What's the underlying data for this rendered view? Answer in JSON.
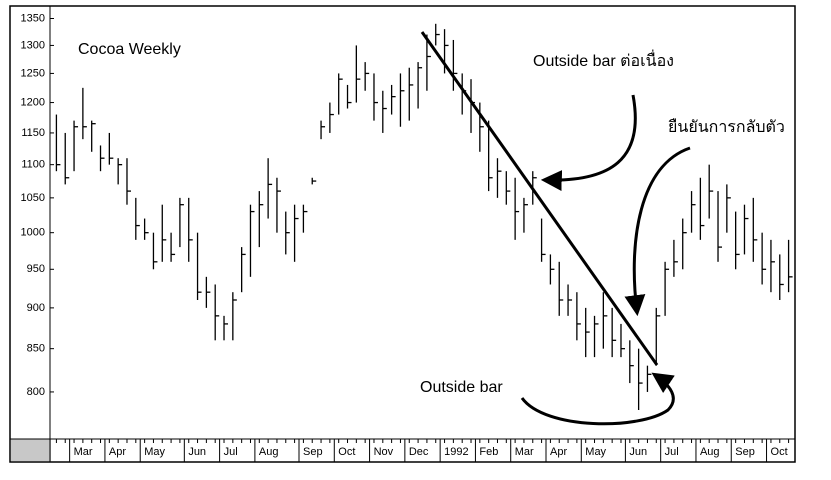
{
  "chart_data": {
    "type": "ohlc",
    "title": "Cocoa Weekly",
    "annotations": [
      "Outside bar ต่อเนื่อง",
      "ยืนยันการกลับตัว",
      "Outside bar"
    ],
    "categories": [
      null,
      "Mar",
      "Apr",
      "May",
      "Jun",
      "Jul",
      "Aug",
      "Sep",
      "Oct",
      "Nov",
      "Dec",
      "1992",
      "Feb",
      "Mar",
      "Apr",
      "May",
      "Jun",
      "Jul",
      "Aug",
      "Sep",
      "Oct"
    ],
    "high": [
      [
        1180,
        1150
      ],
      [
        1170,
        1225,
        1170,
        1130
      ],
      [
        1150,
        1110,
        1110,
        1050
      ],
      [
        1020,
        1000,
        1040,
        1000,
        1050
      ],
      [
        1050,
        1000,
        940,
        930
      ],
      [
        890,
        920,
        980,
        1040
      ],
      [
        1060,
        1110,
        1080,
        1030,
        1040
      ],
      [
        1040,
        1080,
        1170,
        1200
      ],
      [
        1250,
        1230,
        1300,
        1270
      ],
      [
        1250,
        1220,
        1230,
        1250
      ],
      [
        1260,
        1270,
        1320,
        1340
      ],
      [
        1330,
        1310,
        1250,
        1240
      ],
      [
        1200,
        1170,
        1110,
        1090
      ],
      [
        1080,
        1050,
        1090,
        1020
      ],
      [
        970,
        960,
        930,
        920
      ],
      [
        900,
        890,
        920,
        900,
        880
      ],
      [
        860,
        850,
        830,
        900
      ],
      [
        960,
        990,
        1020,
        1060
      ],
      [
        1080,
        1100,
        1060,
        1070
      ],
      [
        1030,
        1040,
        1050,
        1000
      ],
      [
        990,
        970,
        990
      ]
    ],
    "low": [
      [
        1090,
        1070
      ],
      [
        1090,
        1140,
        1120,
        1090
      ],
      [
        1100,
        1070,
        1040,
        990
      ],
      [
        990,
        950,
        960,
        960,
        980
      ],
      [
        960,
        910,
        900,
        860
      ],
      [
        860,
        860,
        920,
        940
      ],
      [
        980,
        1020,
        1000,
        970,
        960
      ],
      [
        1000,
        1070,
        1140,
        1150
      ],
      [
        1180,
        1190,
        1200,
        1220
      ],
      [
        1170,
        1150,
        1180,
        1160
      ],
      [
        1170,
        1190,
        1220,
        1300
      ],
      [
        1250,
        1220,
        1180,
        1150
      ],
      [
        1120,
        1060,
        1050,
        1040
      ],
      [
        990,
        1000,
        1040,
        960
      ],
      [
        930,
        890,
        890,
        860
      ],
      [
        840,
        840,
        850,
        840,
        840
      ],
      [
        810,
        780,
        800,
        830
      ],
      [
        890,
        940,
        950,
        1000
      ],
      [
        990,
        1020,
        960,
        1000
      ],
      [
        950,
        970,
        960,
        930
      ],
      [
        920,
        910,
        920
      ]
    ],
    "close": [
      [
        1100,
        1080
      ],
      [
        1160,
        1160,
        1165,
        1110
      ],
      [
        1110,
        1100,
        1060,
        1010
      ],
      [
        1000,
        960,
        990,
        970,
        1040
      ],
      [
        990,
        920,
        920,
        890
      ],
      [
        880,
        910,
        970,
        1030
      ],
      [
        1040,
        1070,
        1060,
        1000,
        1020
      ],
      [
        1030,
        1075,
        1160,
        1180
      ],
      [
        1240,
        1200,
        1240,
        1250
      ],
      [
        1200,
        1190,
        1210,
        1220
      ],
      [
        1230,
        1260,
        1280,
        1320
      ],
      [
        1300,
        1250,
        1220,
        1200
      ],
      [
        1160,
        1080,
        1090,
        1060
      ],
      [
        1030,
        1040,
        1080,
        970
      ],
      [
        950,
        910,
        910,
        880
      ],
      [
        870,
        880,
        890,
        860,
        850
      ],
      [
        830,
        810,
        820,
        890
      ],
      [
        950,
        960,
        1000,
        1040
      ],
      [
        1010,
        1060,
        980,
        1050
      ],
      [
        970,
        1020,
        990,
        950
      ],
      [
        960,
        930,
        940
      ]
    ],
    "log_scale": true,
    "ylim": [
      750,
      1370
    ],
    "yticks": [
      800,
      850,
      900,
      950,
      1000,
      1050,
      1100,
      1150,
      1200,
      1250,
      1300,
      1350
    ],
    "color": "#000000"
  }
}
